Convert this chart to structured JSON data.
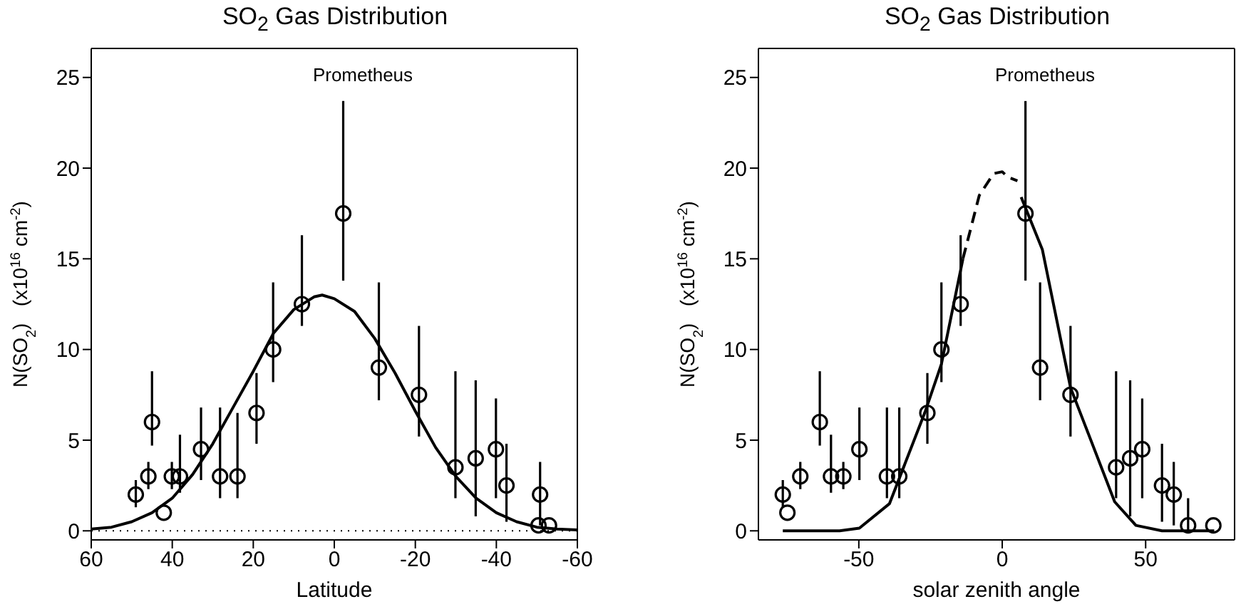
{
  "chart_data": [
    {
      "type": "scatter",
      "title": "SO$_{2}$ Gas Distribution",
      "xlabel": "Latitude",
      "ylabel": "N(SO$_{2}$)   (x10$^{16}$ cm$^{-2}$)",
      "annotations": [
        "Prometheus"
      ],
      "xlim": [
        60,
        -60
      ],
      "xticks": [
        60,
        40,
        20,
        0,
        -20,
        -40,
        -60
      ],
      "ylim": [
        -0.5,
        26.6
      ],
      "yticks": [
        0,
        5,
        10,
        15,
        20,
        25
      ],
      "ref_lines": [
        {
          "axis": "y",
          "value": 0,
          "line_style": "dotted",
          "color": "#000000"
        }
      ],
      "series": [
        {
          "marker": "circle",
          "color": "#000000",
          "x": [
            49,
            45.9,
            45,
            42.1,
            40.1,
            38.1,
            32.9,
            28.2,
            23.9,
            19.2,
            15.1,
            8,
            -2.2,
            -11,
            -20.9,
            -29.9,
            -34.9,
            -39.9,
            -42.5,
            -50.4,
            -50.8,
            -53
          ],
          "values": [
            2,
            3,
            6,
            1,
            3,
            3,
            4.5,
            3,
            3,
            6.5,
            10,
            12.5,
            17.5,
            9,
            7.5,
            3.5,
            4,
            4.5,
            2.5,
            0.3,
            2,
            0.3
          ],
          "errors": [
            [
              1.3,
              2.8
            ],
            [
              2.3,
              3.8
            ],
            [
              4.7,
              8.8
            ],
            null,
            [
              2.3,
              3.8
            ],
            [
              2.1,
              5.3
            ],
            [
              2.8,
              6.8
            ],
            [
              1.8,
              6.8
            ],
            [
              1.8,
              6.5
            ],
            [
              4.8,
              8.7
            ],
            [
              8.2,
              13.7
            ],
            [
              11.3,
              16.3
            ],
            [
              13.8,
              23.7
            ],
            [
              7.2,
              13.7
            ],
            [
              5.2,
              11.3
            ],
            [
              1.8,
              8.8
            ],
            [
              0.8,
              8.3
            ],
            [
              1.8,
              7.3
            ],
            [
              0.5,
              4.8
            ],
            null,
            [
              0.3,
              3.8
            ],
            null
          ]
        },
        {
          "type": "line",
          "color": "#000000",
          "line_style": "solid",
          "x": [
            60,
            55,
            50,
            45,
            40,
            35,
            30,
            25,
            20,
            15,
            10,
            5,
            3,
            0,
            -5,
            -10,
            -15,
            -20,
            -25,
            -30,
            -35,
            -40,
            -45,
            -50,
            -55,
            -60
          ],
          "values": [
            0.1,
            0.2,
            0.5,
            1,
            1.8,
            3.1,
            4.8,
            6.8,
            8.8,
            10.9,
            12.2,
            12.9,
            13,
            12.8,
            12.1,
            10.6,
            8.7,
            6.6,
            4.6,
            3,
            1.8,
            1,
            0.5,
            0.2,
            0.1,
            0.05
          ]
        }
      ]
    },
    {
      "type": "scatter",
      "title": "SO$_{2}$ Gas Distribution",
      "xlabel": "solar zenith angle",
      "ylabel": "N(SO$_{2}$)   (x10$^{16}$ cm$^{-2}$)",
      "annotations": [
        "Prometheus"
      ],
      "xlim": [
        -85,
        81
      ],
      "xticks": [
        -50,
        0,
        50
      ],
      "ylim": [
        -0.5,
        26.6
      ],
      "yticks": [
        0,
        5,
        10,
        15,
        20,
        25
      ],
      "series": [
        {
          "marker": "circle",
          "color": "#000000",
          "x": [
            -76.5,
            -74.9,
            -70.4,
            -63.6,
            -59.7,
            -55.4,
            -49.8,
            -40.2,
            -35.9,
            -26.1,
            -21.2,
            -14.5,
            8.1,
            13.2,
            23.8,
            39.7,
            44.6,
            48.8,
            55.7,
            59.8,
            64.8,
            73.6
          ],
          "values": [
            2,
            1,
            3,
            6,
            3,
            3,
            4.5,
            3,
            3,
            6.5,
            10,
            12.5,
            17.5,
            9,
            7.5,
            3.5,
            4,
            4.5,
            2.5,
            2,
            0.3,
            0.3
          ],
          "errors": [
            [
              1.3,
              2.8
            ],
            null,
            [
              2.3,
              3.8
            ],
            [
              4.7,
              8.8
            ],
            [
              2.1,
              5.3
            ],
            [
              2.3,
              3.8
            ],
            [
              2.8,
              6.8
            ],
            [
              1.8,
              6.8
            ],
            [
              1.8,
              6.8
            ],
            [
              4.8,
              8.7
            ],
            [
              8.2,
              13.7
            ],
            [
              11.3,
              16.3
            ],
            [
              13.8,
              23.7
            ],
            [
              7.2,
              13.7
            ],
            [
              5.2,
              11.3
            ],
            [
              1.8,
              8.8
            ],
            [
              0.8,
              8.3
            ],
            [
              1.8,
              7.3
            ],
            [
              0.5,
              4.8
            ],
            [
              0.3,
              3.8
            ],
            [
              0,
              1.8
            ],
            null
          ]
        },
        {
          "type": "line",
          "color": "#000000",
          "line_style": "solid",
          "x": [
            -76.5,
            -56.7,
            -49.8,
            -39.3,
            -26.8,
            -21.2,
            -13.7
          ],
          "values": [
            0,
            0,
            0.15,
            1.5,
            6.6,
            9.2,
            15
          ]
        },
        {
          "type": "line",
          "color": "#000000",
          "line_style": "dashed",
          "x": [
            -13.7,
            -8,
            -3,
            0,
            2,
            5.3
          ],
          "values": [
            15,
            18.5,
            19.7,
            19.8,
            19.5,
            19.3
          ]
        },
        {
          "type": "line",
          "color": "#000000",
          "line_style": "solid",
          "x": [
            6.6,
            14,
            23.8,
            39.2,
            46.6,
            55.7,
            73.9
          ],
          "values": [
            18.4,
            15.5,
            7.9,
            1.6,
            0.3,
            0,
            0
          ]
        }
      ]
    }
  ]
}
